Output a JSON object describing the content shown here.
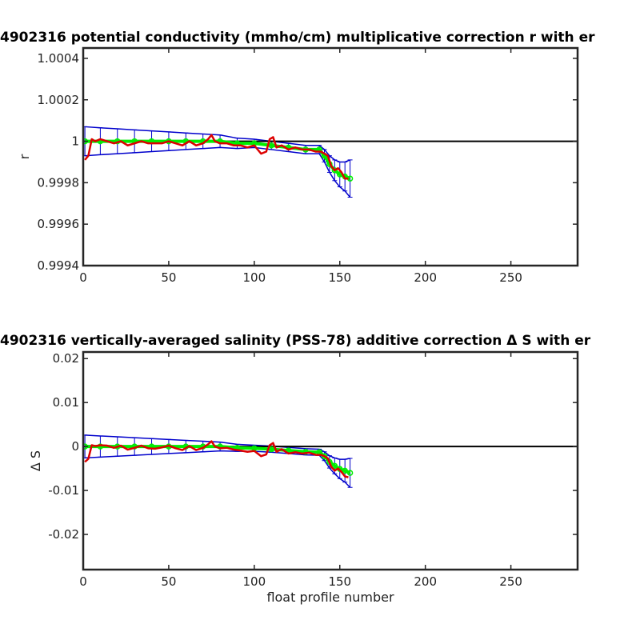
{
  "chart_data": [
    {
      "type": "line",
      "title": "4902316 potential conductivity (mmho/cm) multiplicative correction r with er",
      "xlabel": "",
      "ylabel": "r",
      "xlim": [
        0,
        289
      ],
      "ylim": [
        0.9994,
        1.00045
      ],
      "xticks": [
        0,
        50,
        100,
        150,
        200,
        250
      ],
      "xtick_labels": [
        "0",
        "50",
        "100",
        "150",
        "200",
        "250"
      ],
      "yticks": [
        0.9994,
        0.9996,
        0.9998,
        1.0,
        1.0002,
        1.0004
      ],
      "ytick_labels": [
        "0.9994",
        "0.9996",
        "0.9998",
        "1",
        "1.0002",
        "1.0004"
      ],
      "grid": false,
      "reference_line": {
        "y": 1.0,
        "color": "#000000"
      },
      "error_color": "#0000cc",
      "fit_color": "#00ee00",
      "raw_color": "#dd0000",
      "errorbars": {
        "x": [
          1,
          10,
          20,
          30,
          40,
          50,
          60,
          70,
          80,
          90,
          100,
          110,
          120,
          130,
          138,
          141,
          144,
          147,
          150,
          153,
          156
        ],
        "y": [
          1.0,
          1.0,
          1.0,
          1.0,
          1.0,
          1.0,
          1.0,
          1.0,
          1.0,
          0.99999,
          0.99999,
          0.99998,
          0.99997,
          0.99996,
          0.99996,
          0.99993,
          0.99989,
          0.99986,
          0.99984,
          0.99983,
          0.99982
        ],
        "err": [
          7e-05,
          6.5e-05,
          6e-05,
          5.5e-05,
          5e-05,
          4.5e-05,
          4e-05,
          3.5e-05,
          3e-05,
          2.5e-05,
          2e-05,
          2e-05,
          2e-05,
          2e-05,
          2e-05,
          3e-05,
          4e-05,
          5e-05,
          6e-05,
          7e-05,
          9e-05
        ]
      },
      "series": [
        {
          "kind": "fit",
          "x": [
            1,
            10,
            20,
            30,
            40,
            50,
            60,
            70,
            80,
            90,
            100,
            110,
            120,
            130,
            138,
            141,
            144,
            147,
            150,
            153,
            156
          ],
          "y": [
            1.0,
            1.0,
            1.0,
            1.0,
            1.0,
            1.0,
            1.0,
            1.0,
            1.0,
            0.99999,
            0.99999,
            0.99998,
            0.99997,
            0.99996,
            0.99996,
            0.99993,
            0.99989,
            0.99986,
            0.99984,
            0.99983,
            0.99982
          ]
        },
        {
          "kind": "raw",
          "x": [
            1,
            3,
            5,
            7,
            10,
            14,
            18,
            22,
            26,
            30,
            34,
            38,
            42,
            46,
            50,
            54,
            58,
            62,
            66,
            70,
            73,
            75,
            77,
            80,
            84,
            88,
            92,
            96,
            100,
            104,
            107,
            109,
            111,
            113,
            116,
            120,
            124,
            128,
            132,
            136,
            139,
            141,
            143,
            145,
            147,
            149,
            151,
            153,
            155
          ],
          "y": [
            0.99991,
            0.99993,
            1.00001,
            1.0,
            1.00001,
            1.0,
            0.99999,
            1.0,
            0.99998,
            0.99999,
            1.0,
            0.99999,
            0.99999,
            0.99999,
            1.0,
            0.99999,
            0.99998,
            1.0,
            0.99998,
            0.99999,
            1.00001,
            1.00003,
            1.0,
            0.99999,
            0.99999,
            0.99998,
            0.99998,
            0.99997,
            0.99998,
            0.99994,
            0.99995,
            1.00001,
            1.00002,
            0.99997,
            0.99998,
            0.99996,
            0.99997,
            0.99996,
            0.99996,
            0.99995,
            0.99995,
            0.99994,
            0.99993,
            0.99988,
            0.99986,
            0.99987,
            0.99985,
            0.99982,
            0.99982
          ]
        }
      ]
    },
    {
      "type": "line",
      "title": "4902316 vertically-averaged salinity (PSS-78) additive correction Δ S with er",
      "xlabel": "float profile number",
      "ylabel": "Δ S",
      "xlim": [
        0,
        289
      ],
      "ylim": [
        -0.028,
        0.0215
      ],
      "xticks": [
        0,
        50,
        100,
        150,
        200,
        250
      ],
      "xtick_labels": [
        "0",
        "50",
        "100",
        "150",
        "200",
        "250"
      ],
      "yticks": [
        -0.02,
        -0.01,
        0.0,
        0.01,
        0.02
      ],
      "ytick_labels": [
        "-0.02",
        "-0.01",
        "0",
        "0.01",
        "0.02"
      ],
      "grid": false,
      "reference_line": {
        "y": 0.0,
        "color": "#000000"
      },
      "error_color": "#0000cc",
      "fit_color": "#00ee00",
      "raw_color": "#dd0000",
      "errorbars": {
        "x": [
          1,
          10,
          20,
          30,
          40,
          50,
          60,
          70,
          80,
          90,
          100,
          110,
          120,
          130,
          138,
          141,
          144,
          147,
          150,
          153,
          156
        ],
        "y": [
          0.0,
          0.0,
          0.0,
          0.0,
          0.0,
          0.0,
          0.0,
          0.0,
          0.0,
          -0.0003,
          -0.0004,
          -0.0006,
          -0.0009,
          -0.0012,
          -0.0013,
          -0.0022,
          -0.0035,
          -0.0044,
          -0.0051,
          -0.0055,
          -0.006
        ],
        "err": [
          0.0026,
          0.0024,
          0.0022,
          0.002,
          0.0018,
          0.0016,
          0.0014,
          0.0012,
          0.001,
          0.0008,
          0.0007,
          0.0007,
          0.0007,
          0.0007,
          0.0007,
          0.001,
          0.0014,
          0.0018,
          0.0022,
          0.0026,
          0.0033
        ]
      },
      "series": [
        {
          "kind": "fit",
          "x": [
            1,
            10,
            20,
            30,
            40,
            50,
            60,
            70,
            80,
            90,
            100,
            110,
            120,
            130,
            138,
            141,
            144,
            147,
            150,
            153,
            156
          ],
          "y": [
            0.0,
            0.0,
            0.0,
            0.0,
            0.0,
            0.0,
            0.0,
            0.0,
            0.0,
            -0.0003,
            -0.0004,
            -0.0006,
            -0.0009,
            -0.0012,
            -0.0013,
            -0.0022,
            -0.0035,
            -0.0044,
            -0.0051,
            -0.0055,
            -0.006
          ]
        },
        {
          "kind": "raw",
          "x": [
            1,
            3,
            5,
            7,
            10,
            14,
            18,
            22,
            26,
            30,
            34,
            38,
            42,
            46,
            50,
            54,
            58,
            62,
            66,
            70,
            73,
            75,
            77,
            80,
            84,
            88,
            92,
            96,
            100,
            104,
            107,
            109,
            111,
            113,
            116,
            120,
            124,
            128,
            132,
            136,
            139,
            141,
            143,
            145,
            147,
            149,
            151,
            153,
            155
          ],
          "y": [
            -0.0035,
            -0.0028,
            0.0003,
            0.0001,
            0.0003,
            0.0002,
            -0.0003,
            0.0002,
            -0.0007,
            -0.0003,
            0.0002,
            -0.0004,
            -0.0005,
            -0.0002,
            0.0002,
            -0.0004,
            -0.0008,
            0.0001,
            -0.0008,
            -0.0003,
            0.0005,
            0.0012,
            0.0,
            -0.0004,
            -0.0003,
            -0.0007,
            -0.0009,
            -0.0012,
            -0.001,
            -0.0022,
            -0.0018,
            0.0003,
            0.0008,
            -0.0012,
            -0.0006,
            -0.0016,
            -0.0013,
            -0.0016,
            -0.0014,
            -0.0019,
            -0.0019,
            -0.0022,
            -0.0027,
            -0.0046,
            -0.0055,
            -0.005,
            -0.0058,
            -0.0068,
            -0.007
          ]
        }
      ]
    }
  ]
}
